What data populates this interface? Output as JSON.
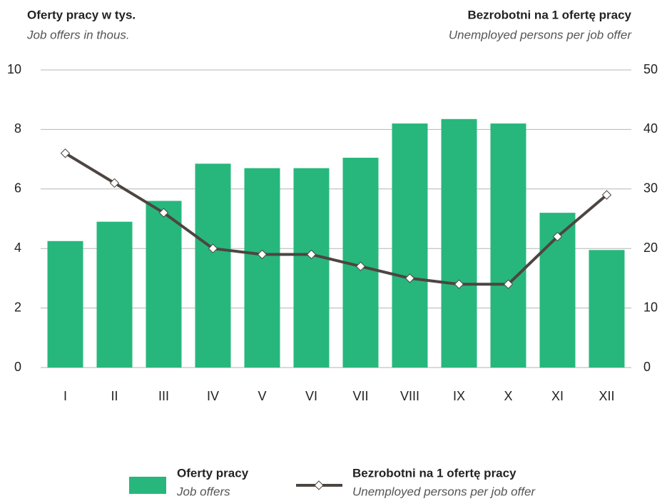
{
  "chart_data": {
    "type": "bar",
    "ylabel": "Oferty pracy w tys.",
    "ylabel_en": "Job offers in thous.",
    "y2label": "Bezrobotni na 1 ofertę pracy",
    "y2label_en": "Unemployed persons per job offer",
    "categories": [
      "I",
      "II",
      "III",
      "IV",
      "V",
      "VI",
      "VII",
      "VIII",
      "IX",
      "X",
      "XI",
      "XII"
    ],
    "series": [
      {
        "name": "Oferty pracy",
        "name_en": "Job offers",
        "type": "bar",
        "color": "#27b77c",
        "values": [
          4.25,
          4.9,
          5.6,
          6.85,
          6.7,
          6.7,
          7.05,
          8.2,
          8.35,
          8.2,
          5.2,
          3.95
        ]
      },
      {
        "name": "Bezrobotni na 1 ofertę pracy",
        "name_en": "Unemployed persons per job offer",
        "type": "line",
        "axis": "y2",
        "color": "#4d4541",
        "values": [
          36,
          31,
          26,
          20,
          19,
          19,
          17,
          15,
          14,
          14,
          22,
          29
        ]
      }
    ],
    "ylim": [
      0,
      10
    ],
    "yticks": [
      0,
      2,
      4,
      6,
      8,
      10
    ],
    "y2lim": [
      0,
      50
    ],
    "y2ticks": [
      0,
      10,
      20,
      30,
      40,
      50
    ],
    "grid": true
  }
}
